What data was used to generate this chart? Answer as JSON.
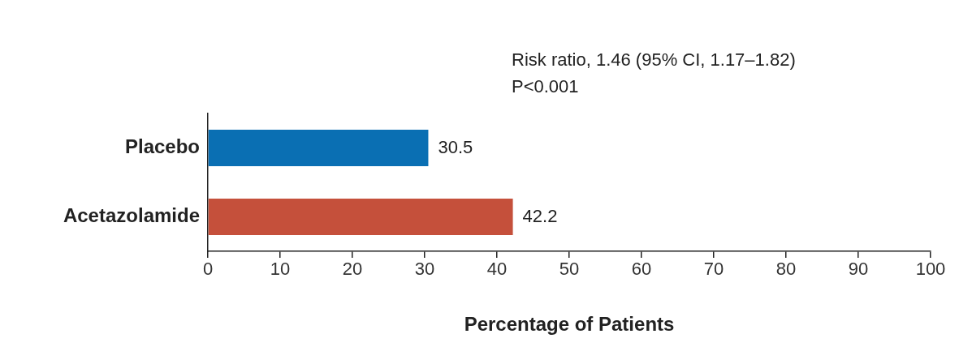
{
  "chart_data": {
    "type": "bar",
    "orientation": "horizontal",
    "categories": [
      "Placebo",
      "Acetazolamide"
    ],
    "values": [
      30.5,
      42.2
    ],
    "colors": [
      "#0a6fb3",
      "#c5503b"
    ],
    "data_labels": true,
    "xlabel": "Percentage of Patients",
    "xlim": [
      0,
      100
    ],
    "xticks": [
      0,
      10,
      20,
      30,
      40,
      50,
      60,
      70,
      80,
      90,
      100
    ],
    "grid": false,
    "legend": false,
    "annotations": [
      "Risk ratio, 1.46 (95% CI, 1.17–1.82)",
      "P<0.001"
    ]
  }
}
